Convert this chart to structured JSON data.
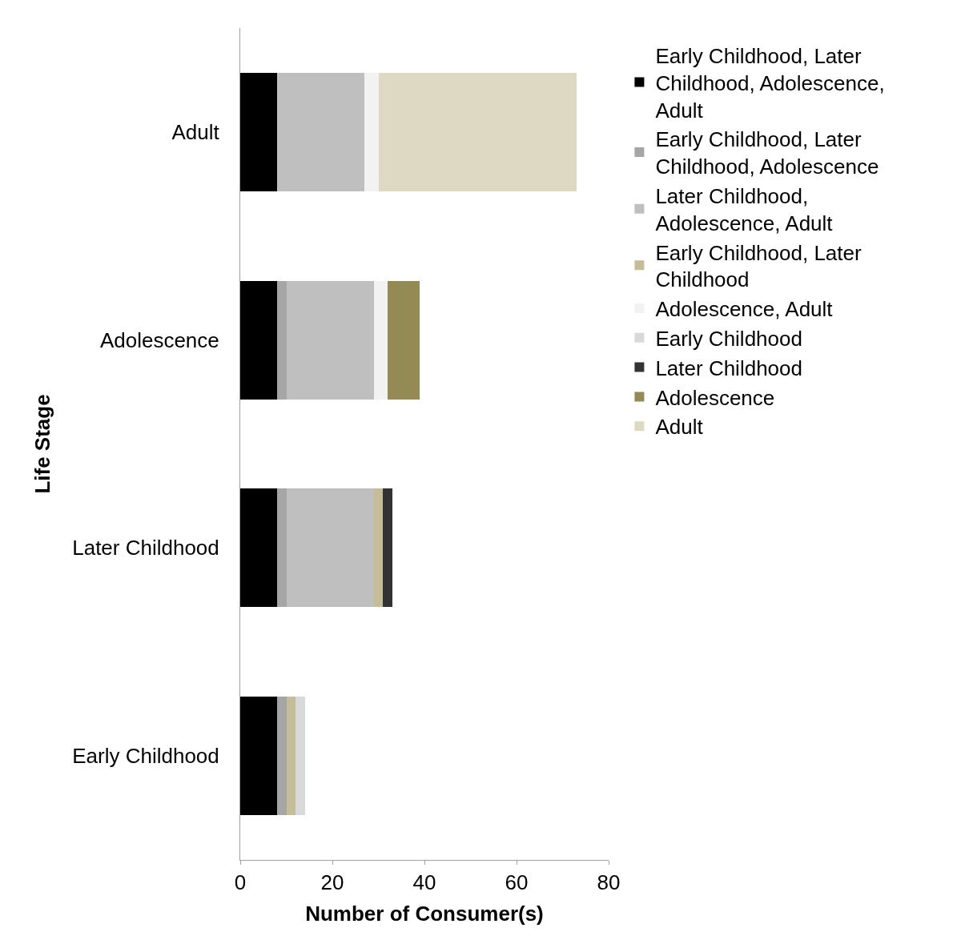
{
  "chart_data": {
    "type": "bar",
    "orientation": "horizontal",
    "stacked": true,
    "xlabel": "Number of Consumer(s)",
    "ylabel": "Life Stage",
    "categories": [
      "Adult",
      "Adolescence",
      "Later Childhood",
      "Early Childhood"
    ],
    "series": [
      {
        "name": "Early Childhood, Later Childhood, Adolescence, Adult",
        "color": "#000000",
        "values": [
          8,
          8,
          8,
          8
        ]
      },
      {
        "name": "Early Childhood, Later Childhood, Adolescence",
        "color": "#a6a6a6",
        "values": [
          null,
          2,
          2,
          2
        ]
      },
      {
        "name": "Later Childhood, Adolescence, Adult",
        "color": "#bfbfbf",
        "values": [
          19,
          19,
          19,
          null
        ]
      },
      {
        "name": "Early Childhood, Later Childhood",
        "color": "#c4bd97",
        "values": [
          null,
          null,
          2,
          2
        ]
      },
      {
        "name": "Adolescence, Adult",
        "color": "#f2f2f2",
        "values": [
          3,
          3,
          null,
          null
        ]
      },
      {
        "name": "Early Childhood",
        "color": "#d9d9d9",
        "values": [
          null,
          null,
          null,
          2
        ]
      },
      {
        "name": "Later Childhood",
        "color": "#333333",
        "values": [
          null,
          null,
          2,
          null
        ]
      },
      {
        "name": "Adolescence",
        "color": "#948a54",
        "values": [
          null,
          7,
          null,
          null
        ]
      },
      {
        "name": "Adult",
        "color": "#ddd9c3",
        "values": [
          43,
          null,
          null,
          null
        ]
      }
    ],
    "xlim": [
      0,
      80
    ],
    "xticks": [
      0,
      20,
      40,
      60,
      80
    ],
    "legend": "right"
  }
}
